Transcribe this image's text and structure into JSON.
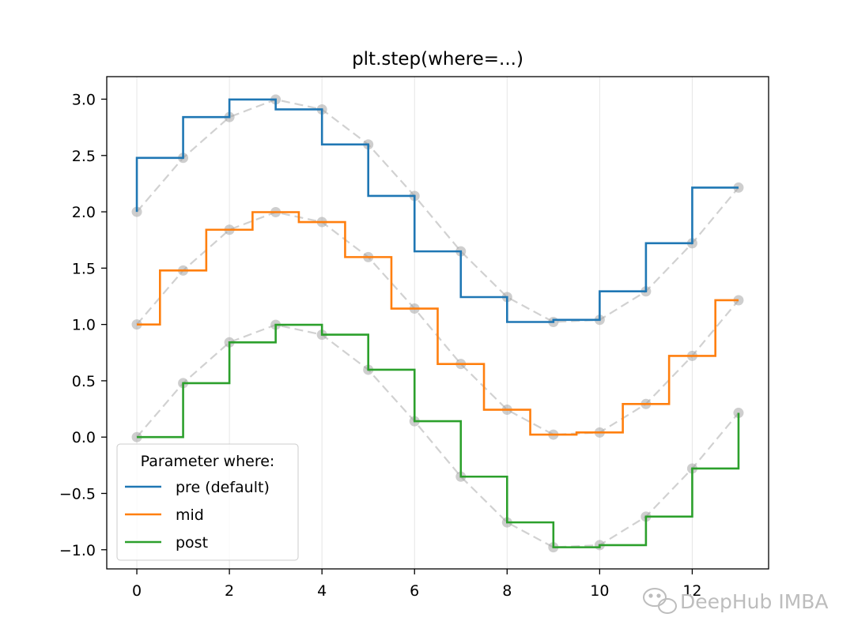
{
  "chart_data": {
    "type": "line",
    "title": "plt.step(where=...)",
    "xlim": [
      -0.65,
      13.65
    ],
    "ylim": [
      -1.17,
      3.2
    ],
    "x_ticks": [
      0,
      2,
      4,
      6,
      8,
      10,
      12
    ],
    "y_ticks": [
      -1.0,
      -0.5,
      0.0,
      0.5,
      1.0,
      1.5,
      2.0,
      2.5,
      3.0
    ],
    "x_tick_labels": [
      "0",
      "2",
      "4",
      "6",
      "8",
      "10",
      "12"
    ],
    "y_tick_labels": [
      "−1.0",
      "−0.5",
      "0.0",
      "0.5",
      "1.0",
      "1.5",
      "2.0",
      "2.5",
      "3.0"
    ],
    "x_grid": true,
    "x": [
      0,
      1,
      2,
      3,
      4,
      5,
      6,
      7,
      8,
      9,
      10,
      11,
      12,
      13
    ],
    "base": [
      0.0,
      0.479,
      0.841,
      0.997,
      0.909,
      0.598,
      0.141,
      -0.351,
      -0.757,
      -0.978,
      -0.959,
      -0.706,
      -0.279,
      0.215
    ],
    "series": [
      {
        "name": "pre (default)",
        "where": "pre",
        "offset": 2,
        "color": "#1f77b4"
      },
      {
        "name": "mid",
        "where": "mid",
        "offset": 1,
        "color": "#ff7f0e"
      },
      {
        "name": "post",
        "where": "post",
        "offset": 0,
        "color": "#2ca02c"
      }
    ],
    "reference_style": {
      "color": "#bdbdbd",
      "dash": "dashed",
      "marker": "circle"
    },
    "legend": {
      "title": "Parameter where:",
      "location": "lower-left"
    }
  },
  "watermark": {
    "text": "DeepHub IMBA",
    "icon": "wechat-icon"
  }
}
